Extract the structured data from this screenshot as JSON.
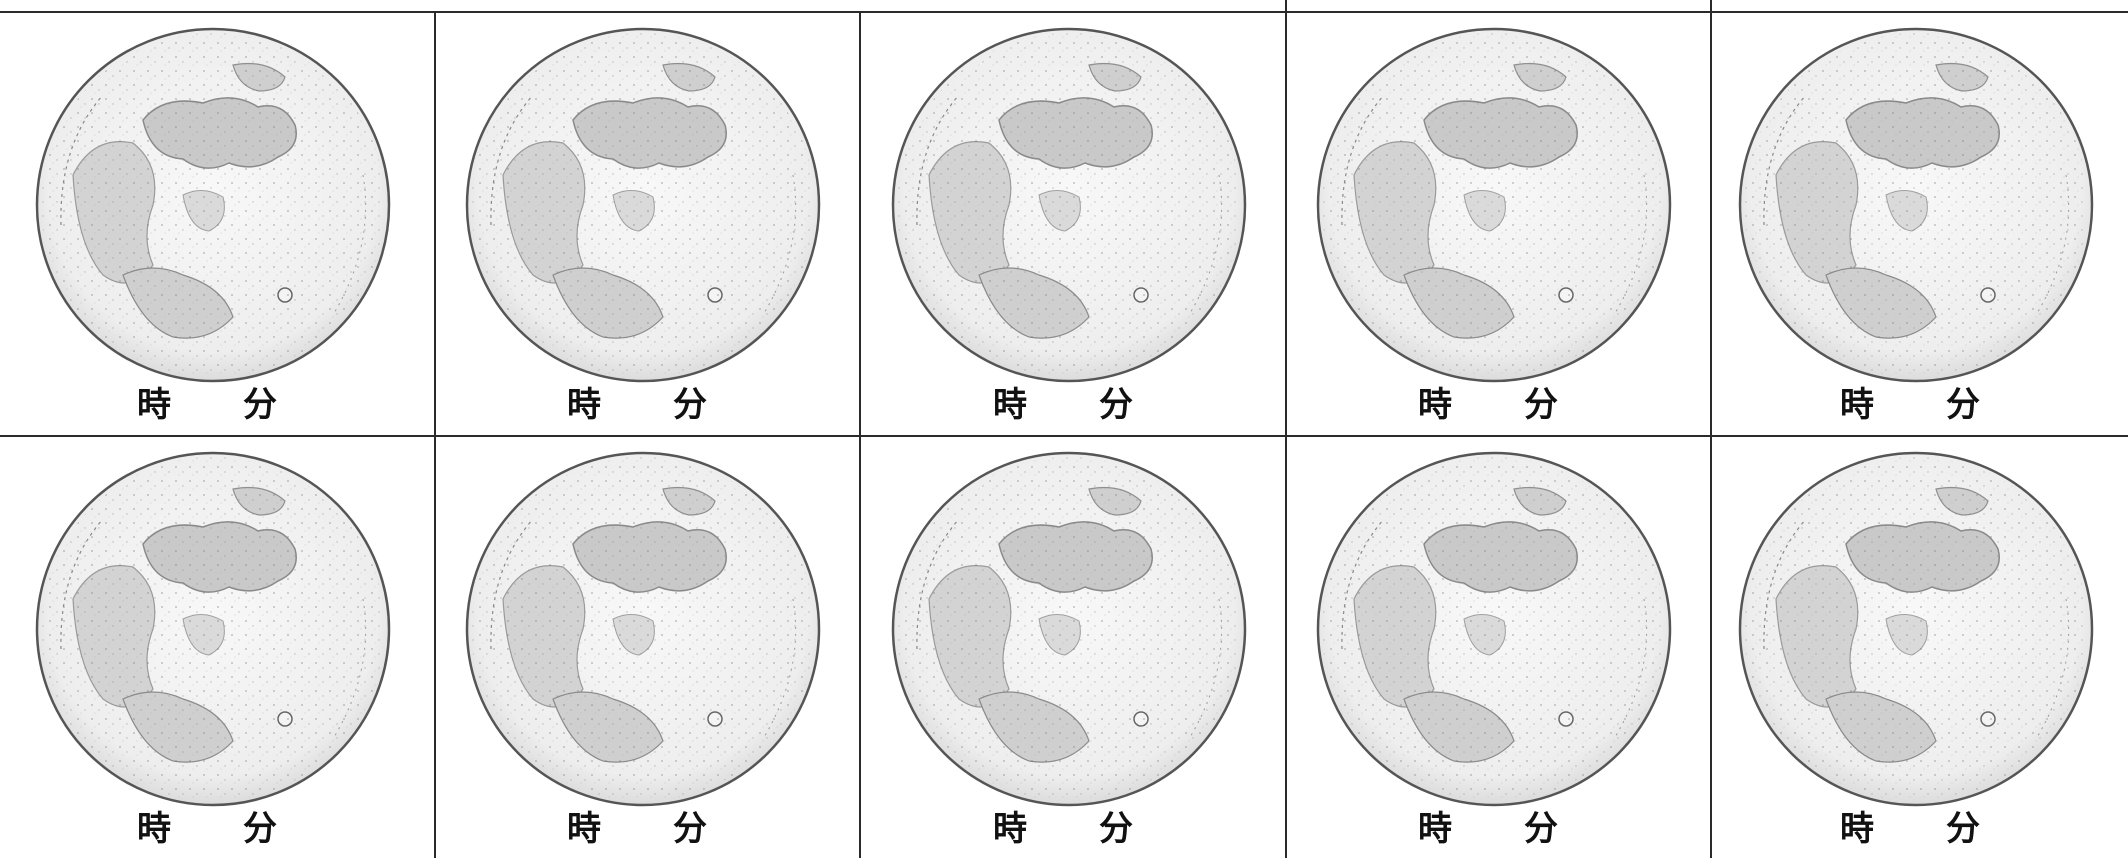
{
  "worksheet": {
    "cell_label": {
      "hour": "時",
      "minute": "分"
    },
    "rows": 2,
    "columns": 5,
    "moon_image": "full-moon-icon",
    "colors": {
      "grid_line": "#2a2a2a",
      "moon_fill": "#f1f1f1",
      "maria": "#c8c8c8",
      "outline": "#555555"
    }
  }
}
